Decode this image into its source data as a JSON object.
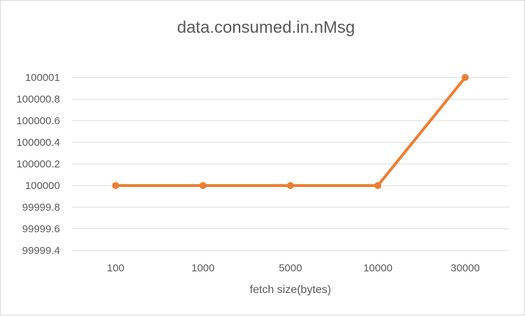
{
  "chart_data": {
    "type": "line",
    "title": "data.consumed.in.nMsg",
    "xlabel": "fetch size(bytes)",
    "ylabel": "",
    "categories": [
      "100",
      "1000",
      "5000",
      "10000",
      "30000"
    ],
    "series": [
      {
        "values": [
          100000,
          100000,
          100000,
          100000,
          100001
        ]
      }
    ],
    "ylim": [
      99999.4,
      100001
    ],
    "yticks": [
      "99999.4",
      "99999.6",
      "99999.8",
      "100000",
      "100000.2",
      "100000.4",
      "100000.6",
      "100000.8",
      "100001"
    ],
    "ytick_values": [
      99999.4,
      99999.6,
      99999.8,
      100000,
      100000.2,
      100000.4,
      100000.6,
      100000.8,
      100001
    ],
    "grid": true,
    "legend": "none",
    "colors": {
      "line": "#ED7D31",
      "grid": "#d9d9d9",
      "text": "#595959"
    }
  }
}
